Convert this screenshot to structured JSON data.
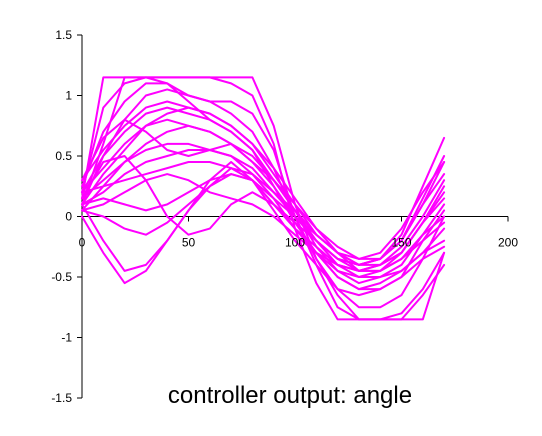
{
  "chart_data": {
    "type": "line",
    "title": "controller output: angle",
    "xlabel": "",
    "ylabel": "",
    "xlim": [
      0,
      200
    ],
    "ylim": [
      -1.5,
      1.5
    ],
    "x_ticks": [
      0,
      50,
      100,
      150,
      200
    ],
    "y_ticks": [
      -1.5,
      -1,
      -0.5,
      0,
      0.5,
      1,
      1.5
    ],
    "x_tick_labels": [
      "0",
      "50",
      "100",
      "150",
      "200"
    ],
    "y_tick_labels": [
      "-1.5",
      "-1",
      "-0.5",
      "0",
      "0.5",
      "1",
      "1.5"
    ],
    "grid": false,
    "legend": "none",
    "series_color": "#ff00ff",
    "series": [
      {
        "x": [
          0,
          10,
          20,
          30,
          40,
          50,
          60,
          70,
          80,
          90,
          100,
          110,
          120,
          130,
          140,
          150,
          160,
          170
        ],
        "values": [
          0.15,
          1.15,
          1.15,
          1.15,
          1.15,
          1.15,
          1.15,
          1.15,
          1.15,
          0.75,
          0.1,
          -0.35,
          -0.65,
          -0.85,
          -0.85,
          -0.85,
          -0.85,
          -0.3
        ]
      },
      {
        "x": [
          0,
          10,
          20,
          30,
          40,
          50,
          60,
          70,
          80,
          90,
          100,
          110,
          120,
          130,
          140,
          150,
          160,
          170
        ],
        "values": [
          0.1,
          0.6,
          1.15,
          1.15,
          1.15,
          1.15,
          1.15,
          1.1,
          1.0,
          0.6,
          -0.1,
          -0.55,
          -0.85,
          -0.85,
          -0.85,
          -0.8,
          -0.6,
          -0.3
        ]
      },
      {
        "x": [
          0,
          10,
          20,
          30,
          40,
          50,
          60,
          70,
          80,
          90,
          100,
          110,
          120,
          130,
          140,
          150,
          160,
          170
        ],
        "values": [
          0.2,
          0.9,
          1.1,
          1.15,
          1.1,
          1.0,
          0.95,
          0.95,
          0.85,
          0.55,
          0.0,
          -0.4,
          -0.75,
          -0.85,
          -0.85,
          -0.85,
          -0.65,
          -0.4
        ]
      },
      {
        "x": [
          0,
          10,
          20,
          30,
          40,
          50,
          60,
          70,
          80,
          90,
          100,
          110,
          120,
          130,
          140,
          150,
          160,
          170
        ],
        "values": [
          0.1,
          0.5,
          0.8,
          1.0,
          1.05,
          1.0,
          0.95,
          0.85,
          0.7,
          0.4,
          0.0,
          -0.35,
          -0.6,
          -0.75,
          -0.75,
          -0.65,
          -0.35,
          0.0
        ]
      },
      {
        "x": [
          0,
          10,
          20,
          30,
          40,
          50,
          60,
          70,
          80,
          90,
          100,
          110,
          120,
          130,
          140,
          150,
          160,
          170
        ],
        "values": [
          0.25,
          0.7,
          0.95,
          1.1,
          1.1,
          0.95,
          0.8,
          0.7,
          0.55,
          0.25,
          -0.05,
          -0.3,
          -0.5,
          -0.6,
          -0.6,
          -0.5,
          -0.2,
          0.05
        ]
      },
      {
        "x": [
          0,
          10,
          20,
          30,
          40,
          50,
          60,
          70,
          80,
          90,
          100,
          110,
          120,
          130,
          140,
          150,
          160,
          170
        ],
        "values": [
          0.3,
          0.55,
          0.75,
          0.9,
          0.95,
          0.9,
          0.85,
          0.75,
          0.6,
          0.35,
          0.1,
          -0.15,
          -0.3,
          -0.4,
          -0.4,
          -0.3,
          -0.05,
          0.15
        ]
      },
      {
        "x": [
          0,
          10,
          20,
          30,
          40,
          50,
          60,
          70,
          80,
          90,
          100,
          110,
          120,
          130,
          140,
          150,
          160,
          170
        ],
        "values": [
          0.1,
          0.35,
          0.55,
          0.75,
          0.85,
          0.9,
          0.85,
          0.75,
          0.6,
          0.4,
          0.15,
          -0.1,
          -0.25,
          -0.35,
          -0.35,
          -0.2,
          0.1,
          0.45
        ]
      },
      {
        "x": [
          0,
          10,
          20,
          30,
          40,
          50,
          60,
          70,
          80,
          90,
          100,
          110,
          120,
          130,
          140,
          150,
          160,
          170
        ],
        "values": [
          0.2,
          0.4,
          0.6,
          0.75,
          0.8,
          0.75,
          0.7,
          0.6,
          0.45,
          0.3,
          0.1,
          -0.1,
          -0.3,
          -0.4,
          -0.35,
          -0.2,
          0.15,
          0.5
        ]
      },
      {
        "x": [
          0,
          10,
          20,
          30,
          40,
          50,
          60,
          70,
          80,
          90,
          100,
          110,
          120,
          130,
          140,
          150,
          160,
          170
        ],
        "values": [
          0.05,
          0.25,
          0.45,
          0.6,
          0.7,
          0.75,
          0.7,
          0.6,
          0.45,
          0.25,
          0.0,
          -0.2,
          -0.35,
          -0.4,
          -0.35,
          -0.15,
          0.25,
          0.65
        ]
      },
      {
        "x": [
          0,
          10,
          20,
          30,
          40,
          50,
          60,
          70,
          80,
          90,
          100,
          110,
          120,
          130,
          140,
          150,
          160,
          170
        ],
        "values": [
          0.15,
          0.3,
          0.45,
          0.55,
          0.6,
          0.6,
          0.55,
          0.5,
          0.35,
          0.2,
          0.05,
          -0.15,
          -0.3,
          -0.35,
          -0.3,
          -0.1,
          0.2,
          0.45
        ]
      },
      {
        "x": [
          0,
          10,
          20,
          30,
          40,
          50,
          60,
          70,
          80,
          90,
          100,
          110,
          120,
          130,
          140,
          150,
          160,
          170
        ],
        "values": [
          0.1,
          0.2,
          0.35,
          0.45,
          0.5,
          0.55,
          0.55,
          0.5,
          0.4,
          0.2,
          0.0,
          -0.2,
          -0.35,
          -0.4,
          -0.35,
          -0.2,
          0.1,
          0.35
        ]
      },
      {
        "x": [
          0,
          10,
          20,
          30,
          40,
          50,
          60,
          70,
          80,
          90,
          100,
          110,
          120,
          130,
          140,
          150,
          160,
          170
        ],
        "values": [
          0.2,
          0.25,
          0.3,
          0.35,
          0.4,
          0.45,
          0.45,
          0.4,
          0.3,
          0.1,
          -0.1,
          -0.25,
          -0.4,
          -0.45,
          -0.4,
          -0.3,
          -0.05,
          0.25
        ]
      },
      {
        "x": [
          0,
          10,
          20,
          30,
          40,
          50,
          60,
          70,
          80,
          90,
          100,
          110,
          120,
          130,
          140,
          150,
          160,
          170
        ],
        "values": [
          0.1,
          0.15,
          0.1,
          0.05,
          0.1,
          0.2,
          0.3,
          0.35,
          0.3,
          0.15,
          0.0,
          -0.15,
          -0.3,
          -0.45,
          -0.45,
          -0.35,
          -0.15,
          0.0
        ]
      },
      {
        "x": [
          0,
          10,
          20,
          30,
          40,
          50,
          60,
          70,
          80,
          90,
          100,
          110,
          120,
          130,
          140,
          150,
          160,
          170
        ],
        "values": [
          0.05,
          0.0,
          -0.1,
          -0.15,
          -0.05,
          0.1,
          0.25,
          0.35,
          0.3,
          0.1,
          -0.1,
          -0.3,
          -0.45,
          -0.5,
          -0.5,
          -0.45,
          -0.3,
          -0.1
        ]
      },
      {
        "x": [
          0,
          10,
          20,
          30,
          40,
          50,
          60,
          70,
          80,
          90,
          100,
          110,
          120,
          130,
          140,
          150,
          160,
          170
        ],
        "values": [
          0.1,
          -0.2,
          -0.45,
          -0.4,
          -0.2,
          0.05,
          0.25,
          0.4,
          0.35,
          0.15,
          -0.1,
          -0.3,
          -0.5,
          -0.6,
          -0.55,
          -0.45,
          -0.3,
          -0.2
        ]
      },
      {
        "x": [
          0,
          10,
          20,
          30,
          40,
          50,
          60,
          70,
          80,
          90,
          100,
          110,
          120,
          130,
          140,
          150,
          160,
          170
        ],
        "values": [
          0.0,
          -0.3,
          -0.55,
          -0.45,
          -0.2,
          0.05,
          0.3,
          0.45,
          0.3,
          0.05,
          -0.2,
          -0.4,
          -0.6,
          -0.65,
          -0.6,
          -0.5,
          -0.35,
          -0.25
        ]
      },
      {
        "x": [
          0,
          10,
          20,
          30,
          40,
          50,
          60,
          70,
          80,
          90,
          100,
          110,
          120,
          130,
          140,
          150,
          160,
          170
        ],
        "values": [
          0.15,
          0.45,
          0.5,
          0.3,
          0.0,
          -0.15,
          -0.1,
          0.1,
          0.2,
          0.1,
          -0.05,
          -0.2,
          -0.35,
          -0.45,
          -0.45,
          -0.35,
          -0.2,
          -0.05
        ]
      },
      {
        "x": [
          0,
          10,
          20,
          30,
          40,
          50,
          60,
          70,
          80,
          90,
          100,
          110,
          120,
          130,
          140,
          150,
          160,
          170
        ],
        "values": [
          0.3,
          0.65,
          0.8,
          0.7,
          0.55,
          0.5,
          0.55,
          0.6,
          0.5,
          0.3,
          0.05,
          -0.2,
          -0.4,
          -0.5,
          -0.45,
          -0.3,
          -0.05,
          0.2
        ]
      },
      {
        "x": [
          0,
          10,
          20,
          30,
          40,
          50,
          60,
          70,
          80,
          90,
          100,
          110,
          120,
          130,
          140,
          150,
          160,
          170
        ],
        "values": [
          0.05,
          0.1,
          0.2,
          0.3,
          0.35,
          0.3,
          0.2,
          0.15,
          0.1,
          0.0,
          -0.15,
          -0.3,
          -0.4,
          -0.45,
          -0.4,
          -0.25,
          0.0,
          0.3
        ]
      },
      {
        "x": [
          0,
          10,
          20,
          30,
          40,
          50,
          60,
          70,
          80,
          90,
          100,
          110,
          120,
          130,
          140,
          150,
          160,
          170
        ],
        "values": [
          0.2,
          0.5,
          0.7,
          0.85,
          0.9,
          0.85,
          0.8,
          0.7,
          0.55,
          0.3,
          0.05,
          -0.25,
          -0.45,
          -0.55,
          -0.5,
          -0.4,
          -0.15,
          0.1
        ]
      }
    ]
  }
}
